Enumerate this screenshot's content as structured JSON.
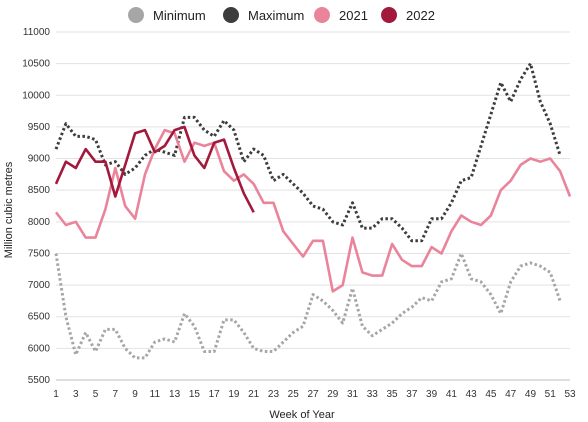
{
  "chart_data": {
    "type": "line",
    "xlabel": "Week of Year",
    "ylabel": "Million cubic metres",
    "xlim": [
      1,
      53
    ],
    "ylim": [
      5500,
      11000
    ],
    "x_ticks": [
      1,
      3,
      5,
      7,
      9,
      11,
      13,
      15,
      17,
      19,
      21,
      23,
      25,
      27,
      29,
      31,
      33,
      35,
      37,
      39,
      41,
      43,
      45,
      47,
      49,
      51,
      53
    ],
    "y_ticks": [
      5500,
      6000,
      6500,
      7000,
      7500,
      8000,
      8500,
      9000,
      9500,
      10000,
      10500,
      11000
    ],
    "grid": "horizontal",
    "legend_position": "top",
    "series": [
      {
        "name": "Minimum",
        "color": "#a6a6a6",
        "style": "dotted",
        "x": [
          1,
          2,
          3,
          4,
          5,
          6,
          7,
          8,
          9,
          10,
          11,
          12,
          13,
          14,
          15,
          16,
          17,
          18,
          19,
          20,
          21,
          22,
          23,
          24,
          25,
          26,
          27,
          28,
          29,
          30,
          31,
          32,
          33,
          34,
          35,
          36,
          37,
          38,
          39,
          40,
          41,
          42,
          43,
          44,
          45,
          46,
          47,
          48,
          49,
          50,
          51,
          52
        ],
        "values": [
          7500,
          6500,
          5900,
          6250,
          5950,
          6300,
          6300,
          6000,
          5850,
          5850,
          6100,
          6150,
          6100,
          6550,
          6350,
          5950,
          5950,
          6450,
          6450,
          6250,
          6000,
          5950,
          5950,
          6100,
          6250,
          6350,
          6850,
          6750,
          6600,
          6400,
          6950,
          6350,
          6200,
          6300,
          6400,
          6550,
          6650,
          6800,
          6750,
          7050,
          7100,
          7500,
          7100,
          7050,
          6850,
          6550,
          7050,
          7300,
          7350,
          7300,
          7200,
          6750
        ]
      },
      {
        "name": "Maximum",
        "color": "#3d3d3d",
        "style": "dotted",
        "x": [
          1,
          2,
          3,
          4,
          5,
          6,
          7,
          8,
          9,
          10,
          11,
          12,
          13,
          14,
          15,
          16,
          17,
          18,
          19,
          20,
          21,
          22,
          23,
          24,
          25,
          26,
          27,
          28,
          29,
          30,
          31,
          32,
          33,
          34,
          35,
          36,
          37,
          38,
          39,
          40,
          41,
          42,
          43,
          44,
          45,
          46,
          47,
          48,
          49,
          50,
          51,
          52
        ],
        "values": [
          9150,
          9550,
          9350,
          9350,
          9300,
          8900,
          8950,
          8750,
          8850,
          9050,
          9150,
          9100,
          9050,
          9650,
          9650,
          9450,
          9350,
          9600,
          9450,
          8950,
          9150,
          9050,
          8650,
          8750,
          8600,
          8450,
          8250,
          8200,
          8000,
          7950,
          8300,
          7900,
          7900,
          8050,
          8050,
          7900,
          7700,
          7700,
          8050,
          8050,
          8300,
          8650,
          8700,
          9200,
          9700,
          10200,
          9900,
          10250,
          10500,
          9900,
          9550,
          9050
        ]
      },
      {
        "name": "2021",
        "color": "#ea849a",
        "style": "solid",
        "x": [
          1,
          2,
          3,
          4,
          5,
          6,
          7,
          8,
          9,
          10,
          11,
          12,
          13,
          14,
          15,
          16,
          17,
          18,
          19,
          20,
          21,
          22,
          23,
          24,
          25,
          26,
          27,
          28,
          29,
          30,
          31,
          32,
          33,
          34,
          35,
          36,
          37,
          38,
          39,
          40,
          41,
          42,
          43,
          44,
          45,
          46,
          47,
          48,
          49,
          50,
          51,
          52,
          53
        ],
        "values": [
          8150,
          7950,
          8000,
          7750,
          7750,
          8200,
          8850,
          8250,
          8050,
          8750,
          9150,
          9450,
          9400,
          8950,
          9250,
          9200,
          9250,
          8800,
          8650,
          8750,
          8600,
          8300,
          8300,
          7850,
          7650,
          7450,
          7700,
          7700,
          6900,
          7000,
          7750,
          7200,
          7150,
          7150,
          7650,
          7400,
          7300,
          7300,
          7600,
          7500,
          7850,
          8100,
          8000,
          7950,
          8100,
          8500,
          8650,
          8900,
          9000,
          8950,
          9000,
          8800,
          8400
        ]
      },
      {
        "name": "2022",
        "color": "#a3193b",
        "style": "solid",
        "x": [
          1,
          2,
          3,
          4,
          5,
          6,
          7,
          8,
          9,
          10,
          11,
          12,
          13,
          14,
          15,
          16,
          17,
          18,
          19,
          20,
          21
        ],
        "values": [
          8600,
          8950,
          8850,
          9150,
          8950,
          8950,
          8400,
          8900,
          9400,
          9450,
          9100,
          9200,
          9450,
          9500,
          9050,
          8850,
          9250,
          9300,
          8850,
          8450,
          8150
        ]
      }
    ]
  }
}
